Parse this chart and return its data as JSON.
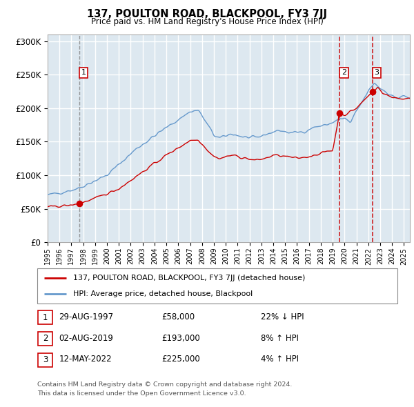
{
  "title": "137, POULTON ROAD, BLACKPOOL, FY3 7JJ",
  "subtitle": "Price paid vs. HM Land Registry's House Price Index (HPI)",
  "ylim": [
    0,
    310000
  ],
  "yticks": [
    0,
    50000,
    100000,
    150000,
    200000,
    250000,
    300000
  ],
  "ytick_labels": [
    "£0",
    "£50K",
    "£100K",
    "£150K",
    "£200K",
    "£250K",
    "£300K"
  ],
  "sale_prices": [
    58000,
    193000,
    225000
  ],
  "sale_labels": [
    "1",
    "2",
    "3"
  ],
  "sale_hpi_pct": [
    "22% ↓ HPI",
    "8% ↑ HPI",
    "4% ↑ HPI"
  ],
  "sale_dates_str": [
    "29-AUG-1997",
    "02-AUG-2019",
    "12-MAY-2022"
  ],
  "sale_year_floats": [
    1997.66,
    2019.58,
    2022.36
  ],
  "legend_line1": "137, POULTON ROAD, BLACKPOOL, FY3 7JJ (detached house)",
  "legend_line2": "HPI: Average price, detached house, Blackpool",
  "footer1": "Contains HM Land Registry data © Crown copyright and database right 2024.",
  "footer2": "This data is licensed under the Open Government Licence v3.0.",
  "price_line_color": "#cc0000",
  "hpi_line_color": "#6699cc",
  "background_color": "#dde8f0",
  "grid_color": "#ffffff",
  "dashed_line_color": "#cc0000",
  "first_dashed_color": "#888888"
}
